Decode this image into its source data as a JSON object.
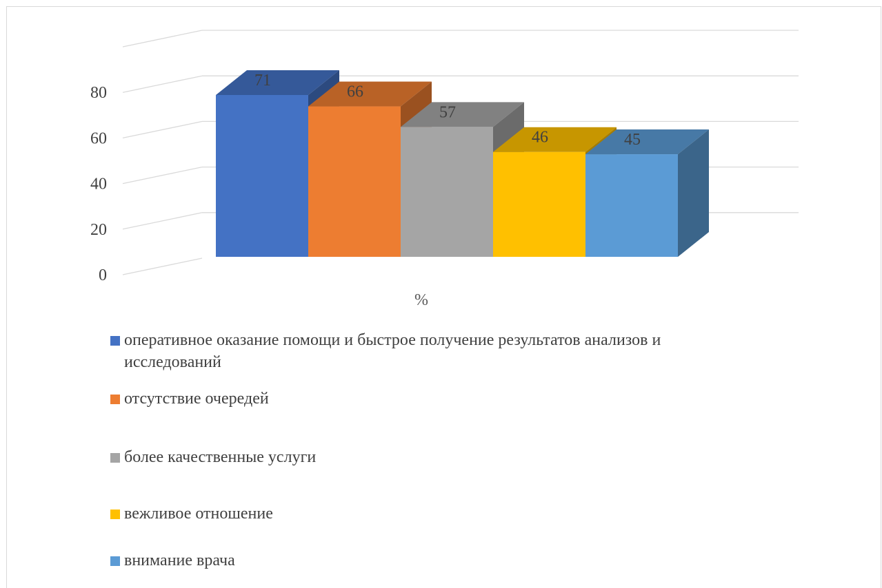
{
  "chart_data": {
    "type": "bar",
    "categories": [
      "%"
    ],
    "series": [
      {
        "name": "оперативное оказание помощи и быстрое получение результатов анализов и исследований",
        "values": [
          71
        ],
        "color": "#4472C4"
      },
      {
        "name": "отсутствие очередей",
        "values": [
          66
        ],
        "color": "#ED7D31"
      },
      {
        "name": "более качественные услуги",
        "values": [
          57
        ],
        "color": "#A5A5A5"
      },
      {
        "name": "вежливое отношение",
        "values": [
          46
        ],
        "color": "#FFC000"
      },
      {
        "name": "внимание врача",
        "values": [
          45
        ],
        "color": "#5B9BD5"
      }
    ],
    "yticks": [
      "0",
      "20",
      "40",
      "60",
      "80"
    ],
    "ylim": [
      0,
      100
    ],
    "grid": true,
    "legend_position": "bottom",
    "style": "3d-clustered-column"
  }
}
